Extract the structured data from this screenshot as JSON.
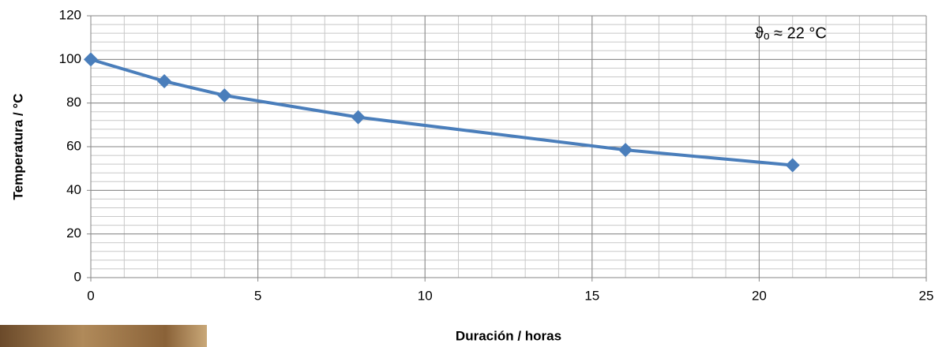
{
  "chart_data": {
    "type": "line",
    "xlabel": "Duración / horas",
    "ylabel": "Temperatura  / °C",
    "annotation": "ϑₒ ≈ 22 °C",
    "x": [
      0,
      2.2,
      4,
      8,
      16,
      21
    ],
    "series": [
      {
        "name": "Temperatura",
        "color": "#4a7ebb",
        "values": [
          100,
          90,
          83.5,
          73.5,
          58.5,
          51.5
        ]
      }
    ],
    "xlim": [
      0,
      25
    ],
    "xticks": [
      0,
      5,
      10,
      15,
      20,
      25
    ],
    "ylim": [
      0,
      120
    ],
    "yticks": [
      0,
      20,
      40,
      60,
      80,
      100,
      120
    ],
    "grid": true,
    "minor_grid": {
      "x": 1,
      "y": 4
    }
  }
}
